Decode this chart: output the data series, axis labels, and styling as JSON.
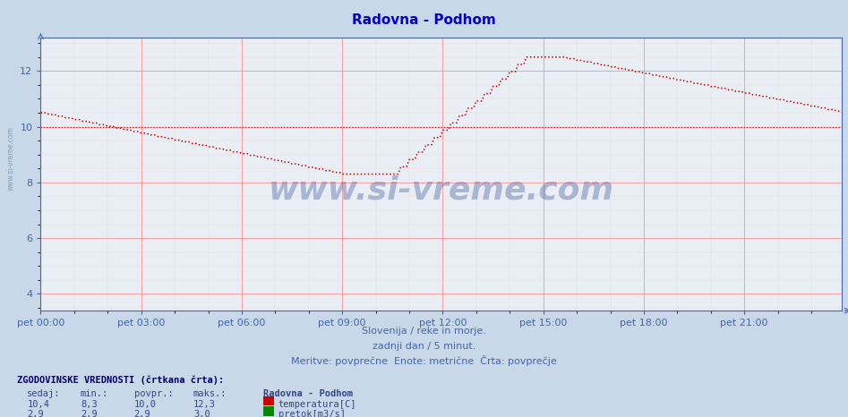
{
  "title": "Radovna - Podhom",
  "title_color": "#0000cc",
  "bg_color": "#c8d8e8",
  "plot_bg_color": "#e8eef4",
  "grid_color_h": "#ff8888",
  "grid_color_v": "#ddaaaa",
  "xlabel_color": "#4466aa",
  "ylabel_color": "#4466aa",
  "axis_color": "#4466aa",
  "x_tick_labels": [
    "pet 00:00",
    "pet 03:00",
    "pet 06:00",
    "pet 09:00",
    "pet 12:00",
    "pet 15:00",
    "pet 18:00",
    "pet 21:00"
  ],
  "ylim_min": 3.4,
  "ylim_max": 13.2,
  "y_ticks": [
    4,
    6,
    8,
    10,
    12
  ],
  "temp_color": "#cc0000",
  "flow_color": "#008800",
  "watermark": "www.si-vreme.com",
  "watermark_color": "#1a3a8a",
  "subtitle1": "Slovenija / reke in morje.",
  "subtitle2": "zadnji dan / 5 minut.",
  "subtitle3": "Meritve: povprečne  Enote: metrične  Črta: povprečje",
  "footer_title": "ZGODOVINSKE VREDNOSTI (črtkana črta):",
  "footer_headers": [
    "sedaj:",
    "min.:",
    "povpr.:",
    "maks.:"
  ],
  "footer_temp_strs": [
    "10,4",
    "8,3",
    "10,0",
    "12,3"
  ],
  "footer_flow_strs": [
    "2,9",
    "2,9",
    "2,9",
    "3,0"
  ],
  "footer_label1": "temperatura[C]",
  "footer_label2": "pretok[m3/s]",
  "footer_station": "Radovna - Podhom",
  "hist_temp_value": 10.0,
  "hist_flow_value": 2.9,
  "flow_value": 3.0
}
